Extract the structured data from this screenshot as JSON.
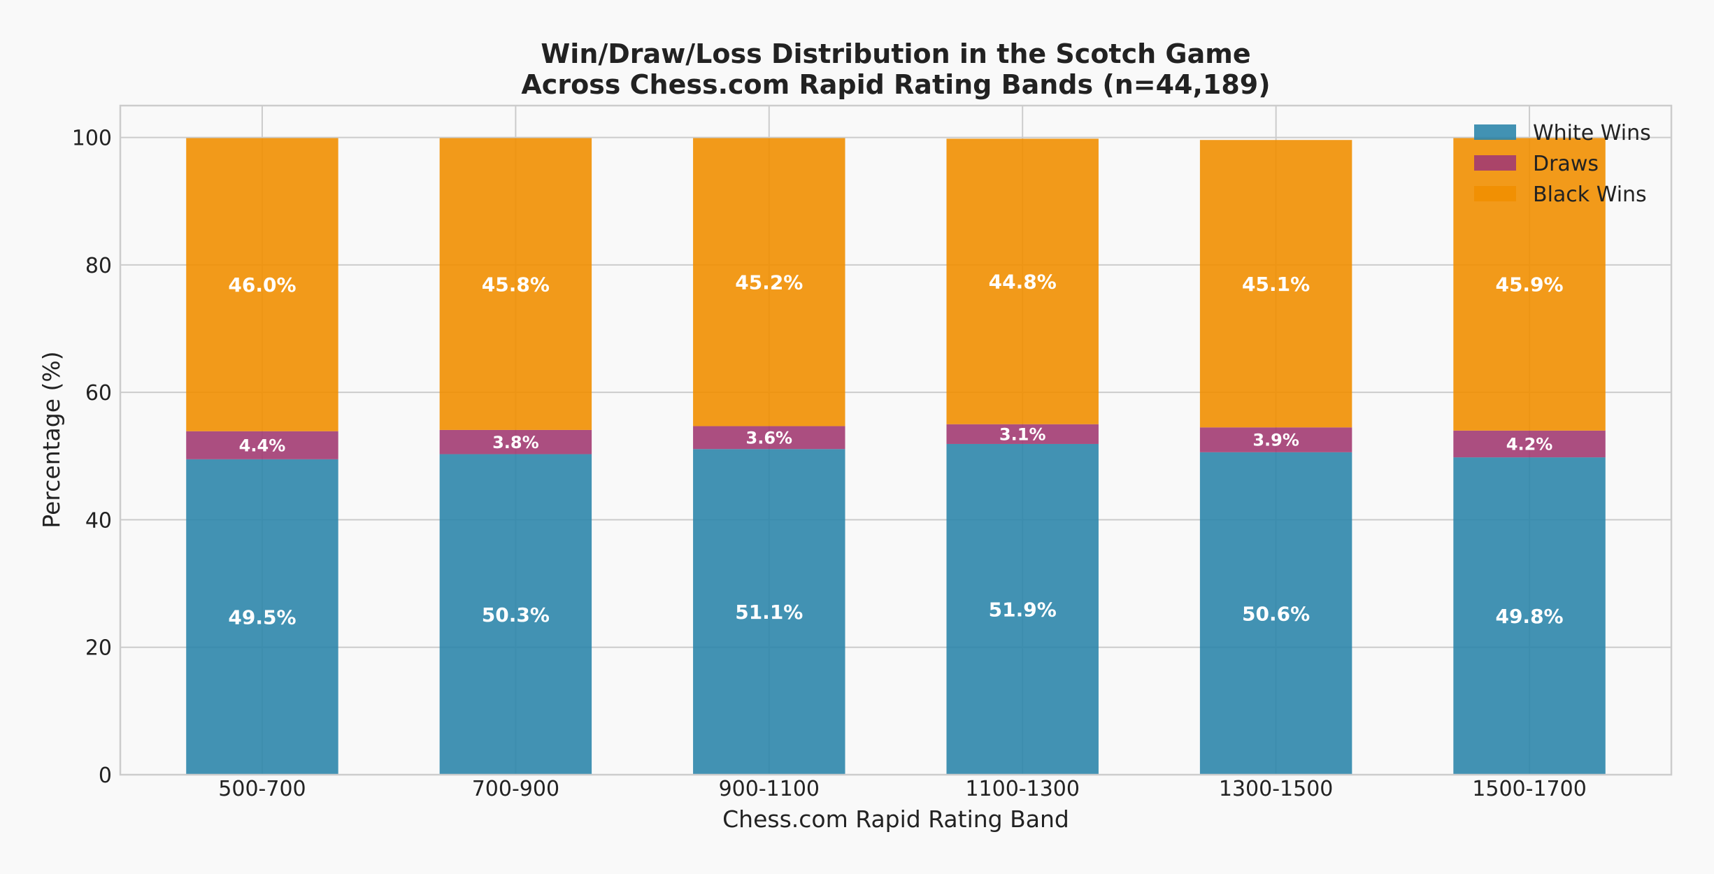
{
  "chart_data": {
    "type": "bar",
    "stacked": true,
    "title": [
      "Win/Draw/Loss Distribution in the Scotch Game",
      "Across Chess.com Rapid Rating Bands (n=44,189)"
    ],
    "xlabel": "Chess.com Rapid Rating Band",
    "ylabel": "Percentage (%)",
    "ylim": [
      0,
      105
    ],
    "yticks": [
      0,
      20,
      40,
      60,
      80,
      100
    ],
    "grid": true,
    "legend_position": "top-right",
    "categories": [
      "500-700",
      "700-900",
      "900-1100",
      "1100-1300",
      "1300-1500",
      "1500-1700"
    ],
    "series": [
      {
        "name": "White Wins",
        "color": "#2e86ab",
        "values": [
          49.5,
          50.3,
          51.1,
          51.9,
          50.6,
          49.8
        ],
        "labels": [
          "49.5%",
          "50.3%",
          "51.1%",
          "51.9%",
          "50.6%",
          "49.8%"
        ]
      },
      {
        "name": "Draws",
        "color": "#a23b72",
        "values": [
          4.4,
          3.8,
          3.6,
          3.1,
          3.9,
          4.2
        ],
        "labels": [
          "4.4%",
          "3.8%",
          "3.6%",
          "3.1%",
          "3.9%",
          "4.2%"
        ]
      },
      {
        "name": "Black Wins",
        "color": "#f18f01",
        "values": [
          46.0,
          45.8,
          45.2,
          44.8,
          45.1,
          45.9
        ],
        "labels": [
          "46.0%",
          "45.8%",
          "45.2%",
          "44.8%",
          "45.1%",
          "45.9%"
        ]
      }
    ]
  }
}
